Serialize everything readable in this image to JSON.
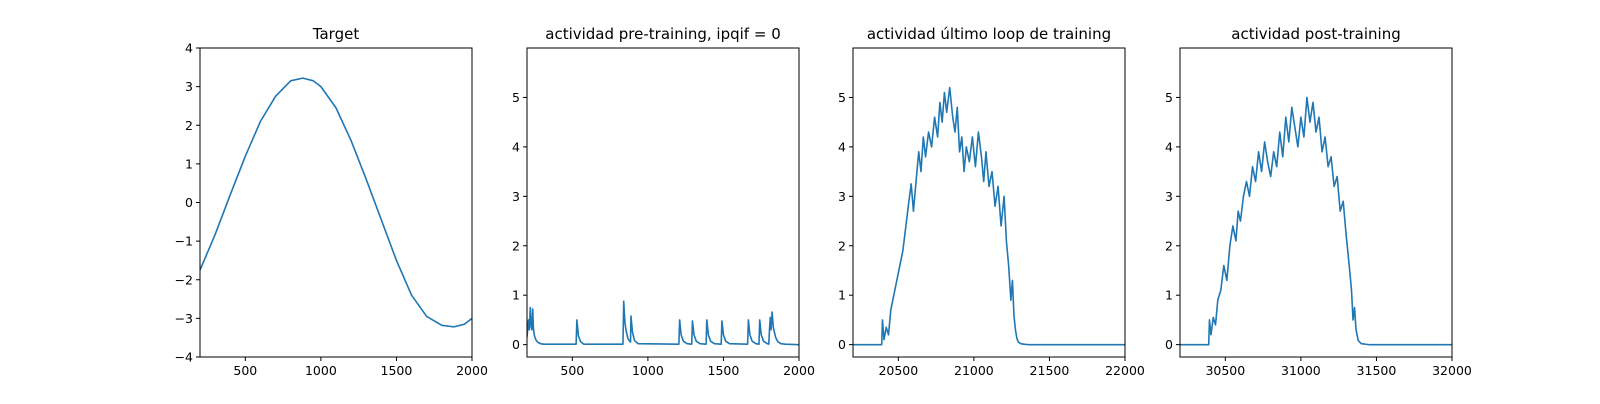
{
  "chart_data": [
    {
      "type": "line",
      "title": "Target",
      "xlabel": "",
      "ylabel": "",
      "xlim": [
        200,
        2000
      ],
      "ylim": [
        -4,
        4
      ],
      "xticks": [
        500,
        1000,
        1500,
        2000
      ],
      "yticks": [
        -4,
        -3,
        -2,
        -1,
        0,
        1,
        2,
        3,
        4
      ],
      "xtick_labels": [
        "500",
        "1000",
        "1500",
        "2000"
      ],
      "ytick_labels": [
        "−4",
        "−3",
        "−2",
        "−1",
        "0",
        "1",
        "2",
        "3",
        "4"
      ],
      "grid": false,
      "color": "#1f77b4",
      "series": [
        {
          "x": [
            200,
            300,
            400,
            500,
            600,
            700,
            800,
            880,
            950,
            1000,
            1100,
            1200,
            1300,
            1400,
            1500,
            1600,
            1700,
            1800,
            1880,
            1950,
            2000
          ],
          "y": [
            -1.75,
            -0.83,
            0.2,
            1.2,
            2.1,
            2.75,
            3.15,
            3.22,
            3.15,
            3.0,
            2.45,
            1.6,
            0.6,
            -0.45,
            -1.5,
            -2.4,
            -2.95,
            -3.18,
            -3.22,
            -3.15,
            -3.0
          ]
        }
      ]
    },
    {
      "type": "line",
      "title": "actividad pre-training, ipqif = 0",
      "xlabel": "",
      "ylabel": "",
      "xlim": [
        200,
        2000
      ],
      "ylim": [
        -0.25,
        6
      ],
      "xticks": [
        500,
        1000,
        1500,
        2000
      ],
      "yticks": [
        0,
        1,
        2,
        3,
        4,
        5
      ],
      "xtick_labels": [
        "500",
        "1000",
        "1500",
        "2000"
      ],
      "ytick_labels": [
        "0",
        "1",
        "2",
        "3",
        "4",
        "5"
      ],
      "grid": false,
      "color": "#1f77b4",
      "series": [
        {
          "x": [
            200,
            210,
            215,
            222,
            228,
            233,
            238,
            242,
            248,
            252,
            262,
            275,
            290,
            310,
            525,
            530,
            540,
            555,
            575,
            835,
            840,
            848,
            855,
            868,
            885,
            888,
            898,
            912,
            935,
            1205,
            1210,
            1220,
            1235,
            1260,
            1290,
            1295,
            1305,
            1320,
            1345,
            1385,
            1390,
            1400,
            1415,
            1440,
            1485,
            1490,
            1500,
            1515,
            1540,
            1660,
            1665,
            1675,
            1690,
            1715,
            1735,
            1740,
            1750,
            1765,
            1790,
            1800,
            1805,
            1810,
            1815,
            1822,
            1830,
            1845,
            1860,
            1880,
            1910,
            2000
          ],
          "y": [
            0.15,
            0.5,
            0.3,
            0.75,
            0.35,
            0.3,
            0.72,
            0.35,
            0.2,
            0.15,
            0.08,
            0.04,
            0.02,
            0.01,
            0.01,
            0.5,
            0.18,
            0.06,
            0.01,
            0.01,
            0.88,
            0.45,
            0.3,
            0.12,
            0.05,
            0.58,
            0.25,
            0.08,
            0.02,
            0.01,
            0.5,
            0.2,
            0.07,
            0.02,
            0.01,
            0.48,
            0.2,
            0.07,
            0.02,
            0.01,
            0.5,
            0.2,
            0.07,
            0.02,
            0.01,
            0.48,
            0.2,
            0.07,
            0.02,
            0.01,
            0.5,
            0.2,
            0.07,
            0.02,
            0.01,
            0.5,
            0.2,
            0.07,
            0.02,
            0.01,
            0.32,
            0.55,
            0.3,
            0.66,
            0.35,
            0.15,
            0.06,
            0.02,
            0.01,
            0.0
          ]
        }
      ]
    },
    {
      "type": "line",
      "title": "actividad último loop de training",
      "xlabel": "",
      "ylabel": "",
      "xlim": [
        20200,
        22000
      ],
      "ylim": [
        -0.25,
        6
      ],
      "xticks": [
        20500,
        21000,
        21500,
        22000
      ],
      "yticks": [
        0,
        1,
        2,
        3,
        4,
        5
      ],
      "xtick_labels": [
        "20500",
        "21000",
        "21500",
        "22000"
      ],
      "ytick_labels": [
        "0",
        "1",
        "2",
        "3",
        "4",
        "5"
      ],
      "grid": false,
      "color": "#1f77b4",
      "series": [
        {
          "x": [
            20200,
            20390,
            20395,
            20405,
            20420,
            20435,
            20450,
            20470,
            20490,
            20510,
            20530,
            20550,
            20570,
            20585,
            20600,
            20620,
            20635,
            20650,
            20665,
            20680,
            20700,
            20720,
            20740,
            20760,
            20775,
            20790,
            20805,
            20820,
            20840,
            20860,
            20875,
            20890,
            20905,
            20920,
            20935,
            20950,
            20970,
            20990,
            21010,
            21030,
            21050,
            21065,
            21080,
            21100,
            21120,
            21140,
            21160,
            21180,
            21200,
            21215,
            21230,
            21245,
            21255,
            21265,
            21275,
            21285,
            21295,
            21310,
            21330,
            21360,
            21400,
            22000
          ],
          "y": [
            0.0,
            0.0,
            0.5,
            0.1,
            0.35,
            0.2,
            0.7,
            1.0,
            1.3,
            1.6,
            1.9,
            2.4,
            2.9,
            3.25,
            2.7,
            3.4,
            3.9,
            3.5,
            4.2,
            3.8,
            4.3,
            4.0,
            4.6,
            4.2,
            4.9,
            4.5,
            5.1,
            4.7,
            5.2,
            4.6,
            4.3,
            4.8,
            3.9,
            4.2,
            3.5,
            4.0,
            3.7,
            4.2,
            3.6,
            4.3,
            3.8,
            3.3,
            3.9,
            3.2,
            3.5,
            2.8,
            3.2,
            2.4,
            3.0,
            2.1,
            1.6,
            0.9,
            1.3,
            0.6,
            0.3,
            0.12,
            0.05,
            0.02,
            0.01,
            0.0,
            0.0,
            0.0
          ]
        }
      ]
    },
    {
      "type": "line",
      "title": "actividad post-training",
      "xlabel": "",
      "ylabel": "",
      "xlim": [
        30200,
        32000
      ],
      "ylim": [
        -0.25,
        6
      ],
      "xticks": [
        30500,
        31000,
        31500,
        32000
      ],
      "yticks": [
        0,
        1,
        2,
        3,
        4,
        5
      ],
      "xtick_labels": [
        "30500",
        "31000",
        "31500",
        "32000"
      ],
      "ytick_labels": [
        "0",
        "1",
        "2",
        "3",
        "4",
        "5"
      ],
      "grid": false,
      "color": "#1f77b4",
      "series": [
        {
          "x": [
            30200,
            30390,
            30395,
            30405,
            30420,
            30435,
            30450,
            30470,
            30490,
            30510,
            30530,
            30550,
            30570,
            30585,
            30600,
            30620,
            30640,
            30660,
            30680,
            30700,
            30720,
            30740,
            30760,
            30780,
            30800,
            30820,
            30840,
            30860,
            30880,
            30900,
            30920,
            30940,
            30960,
            30980,
            31000,
            31020,
            31040,
            31060,
            31080,
            31100,
            31120,
            31140,
            31160,
            31180,
            31200,
            31220,
            31240,
            31260,
            31280,
            31300,
            31320,
            31335,
            31345,
            31355,
            31365,
            31380,
            31400,
            31450,
            32000
          ],
          "y": [
            0.0,
            0.0,
            0.5,
            0.2,
            0.55,
            0.4,
            0.9,
            1.1,
            1.6,
            1.3,
            2.0,
            2.4,
            2.1,
            2.7,
            2.5,
            3.0,
            3.3,
            3.0,
            3.6,
            3.3,
            3.9,
            3.5,
            4.1,
            3.7,
            3.4,
            3.9,
            3.6,
            4.3,
            3.8,
            4.6,
            4.1,
            4.8,
            4.4,
            4.0,
            4.6,
            4.2,
            5.0,
            4.5,
            4.9,
            4.3,
            4.6,
            3.9,
            4.2,
            3.6,
            3.8,
            3.2,
            3.4,
            2.7,
            2.9,
            2.2,
            1.6,
            1.1,
            0.5,
            0.75,
            0.3,
            0.08,
            0.02,
            0.0,
            0.0
          ]
        }
      ]
    }
  ]
}
